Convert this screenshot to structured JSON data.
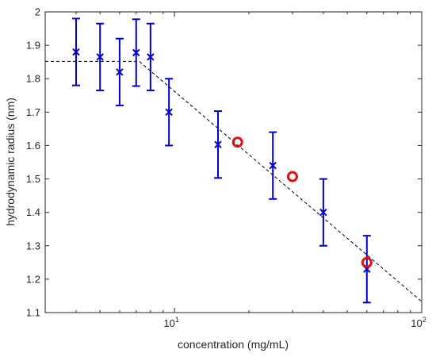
{
  "chart_data": {
    "type": "scatter",
    "xlabel": "concentration (mg/mL)",
    "ylabel": "hydrodynamic radius (nm)",
    "xscale": "log",
    "xlim": [
      3,
      100
    ],
    "ylim": [
      1.1,
      2.0
    ],
    "yticks": [
      1.1,
      1.2,
      1.3,
      1.4,
      1.5,
      1.6,
      1.7,
      1.8,
      1.9,
      2.0
    ],
    "ytick_labels": [
      "1.1",
      "1.2",
      "1.3",
      "1.4",
      "1.5",
      "1.6",
      "1.7",
      "1.8",
      "1.9",
      "2"
    ],
    "xticks_major": [
      10,
      100
    ],
    "xtick_bases": [
      "10",
      "10"
    ],
    "xtick_exponents": [
      "1",
      "2"
    ],
    "grid": false,
    "colors": {
      "crosses": "#0000cc",
      "circles": "#dd1111",
      "fit": "#000000",
      "axes": "#262626"
    },
    "series": [
      {
        "marker": "x",
        "color": "#0000cc",
        "points": [
          {
            "x": 4,
            "y": 1.88,
            "err": 0.1
          },
          {
            "x": 5,
            "y": 1.865,
            "err": 0.1
          },
          {
            "x": 6,
            "y": 1.82,
            "err": 0.1
          },
          {
            "x": 7,
            "y": 1.878,
            "err": 0.1
          },
          {
            "x": 8,
            "y": 1.865,
            "err": 0.1
          },
          {
            "x": 9.5,
            "y": 1.7,
            "err": 0.1
          },
          {
            "x": 15,
            "y": 1.603,
            "err": 0.1
          },
          {
            "x": 25,
            "y": 1.54,
            "err": 0.1
          },
          {
            "x": 40,
            "y": 1.4,
            "err": 0.1
          },
          {
            "x": 60,
            "y": 1.23,
            "err": 0.1
          }
        ]
      },
      {
        "marker": "o",
        "color": "#dd1111",
        "points": [
          {
            "x": 18,
            "y": 1.61
          },
          {
            "x": 30,
            "y": 1.507
          },
          {
            "x": 60,
            "y": 1.25
          }
        ]
      }
    ],
    "fit_line": {
      "style": "dashed",
      "color": "#000000",
      "points": [
        {
          "x": 3,
          "y": 1.852
        },
        {
          "x": 7.2,
          "y": 1.852
        },
        {
          "x": 100,
          "y": 1.133
        }
      ]
    }
  }
}
